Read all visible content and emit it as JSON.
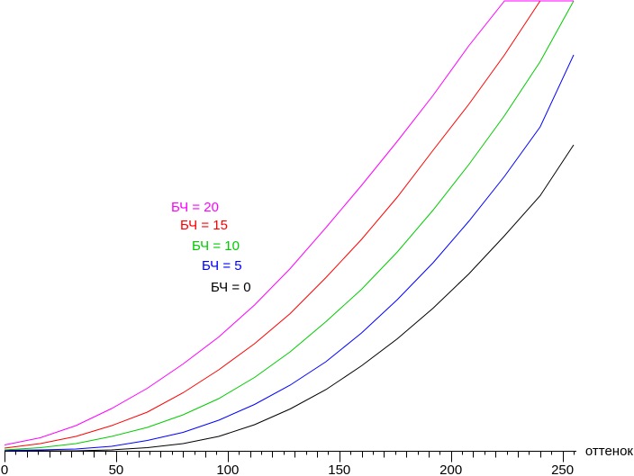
{
  "chart_data": {
    "type": "line",
    "title": "",
    "xlabel": "оттенок",
    "ylabel": "",
    "xlim": [
      0,
      255
    ],
    "ylim": [
      0,
      100
    ],
    "grid": false,
    "legend_placement": "center-left",
    "x_ticks": [
      0,
      50,
      100,
      150,
      200,
      250
    ],
    "x_tick_labels": [
      "0",
      "50",
      "100",
      "150",
      "200",
      "250"
    ],
    "x": [
      0,
      16,
      32,
      48,
      64,
      80,
      96,
      112,
      128,
      144,
      160,
      176,
      192,
      208,
      224,
      240,
      255
    ],
    "series": [
      {
        "name": "БЧ = 20",
        "color": "#ff00ff",
        "values": [
          1.3,
          2.9,
          5.6,
          9.4,
          13.9,
          19.3,
          25.3,
          32.4,
          40.5,
          49.6,
          59.0,
          68.8,
          79.0,
          90.0,
          100,
          100,
          100
        ]
      },
      {
        "name": "БЧ = 15",
        "color": "#ff0000",
        "values": [
          0.6,
          1.6,
          3.2,
          5.6,
          8.6,
          12.9,
          18.0,
          23.8,
          30.5,
          38.5,
          47.0,
          56.4,
          66.8,
          77.0,
          88.0,
          100,
          100
        ]
      },
      {
        "name": "БЧ = 10",
        "color": "#00cc00",
        "values": [
          0.2,
          0.7,
          1.6,
          3.2,
          5.2,
          8.0,
          11.6,
          16.3,
          22.0,
          28.7,
          35.9,
          44.2,
          53.5,
          63.6,
          74.5,
          86.5,
          100
        ]
      },
      {
        "name": "БЧ = 5",
        "color": "#0000ff",
        "values": [
          0.1,
          0.2,
          0.4,
          1.0,
          2.3,
          4.1,
          6.8,
          10.3,
          14.6,
          19.8,
          26.2,
          33.6,
          41.8,
          51.0,
          61.0,
          72.0,
          88.0
        ]
      },
      {
        "name": "БЧ = 0",
        "color": "#000000",
        "values": [
          0,
          0,
          0,
          0.2,
          0.7,
          1.6,
          3.2,
          5.8,
          9.3,
          13.6,
          18.9,
          24.9,
          31.7,
          39.3,
          47.8,
          56.7,
          68.0
        ]
      }
    ]
  }
}
